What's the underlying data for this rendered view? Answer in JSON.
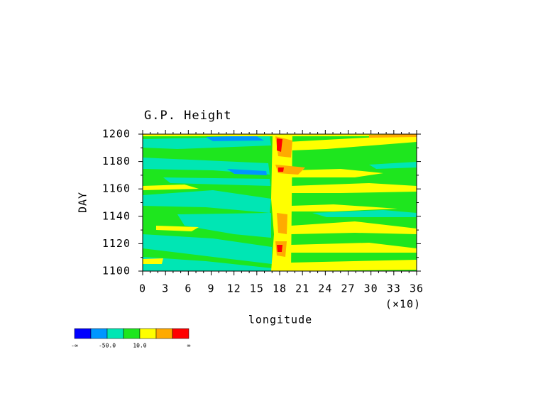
{
  "chart_data": {
    "type": "contour",
    "title": "G.P. Height",
    "x_label": "longitude",
    "y_label": "DAY",
    "x_multiplier": "(×10)",
    "xlim": [
      0,
      36
    ],
    "xticks": [
      0,
      3,
      6,
      9,
      12,
      15,
      18,
      21,
      24,
      27,
      30,
      33,
      36
    ],
    "ylim": [
      1100,
      1200
    ],
    "yticks": [
      1100,
      1120,
      1140,
      1160,
      1180,
      1200
    ],
    "colorbar": {
      "colors": [
        "#0000ff",
        "#0096ff",
        "#00e6b4",
        "#1ee61e",
        "#ffff00",
        "#ffaa00",
        "#ff0000"
      ],
      "labels": [
        "-∞",
        {
          "value": -50,
          "label": "-50.0"
        },
        {
          "value": 10,
          "label": "10.0"
        },
        "∞"
      ]
    }
  }
}
